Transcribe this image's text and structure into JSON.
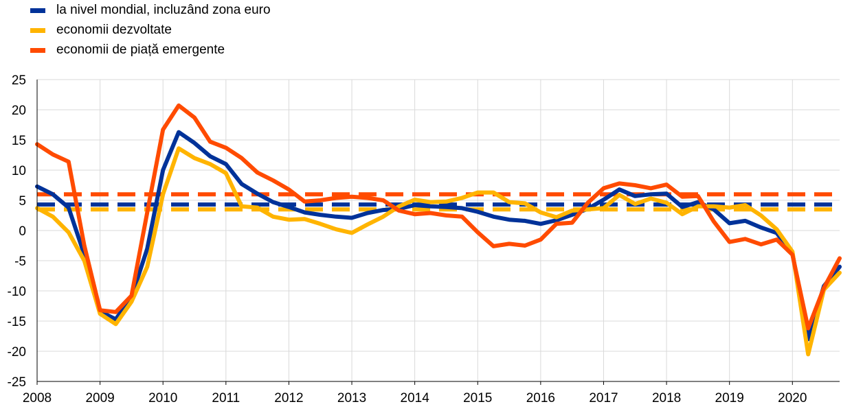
{
  "chart_data": {
    "type": "line",
    "x": [
      "2008Q1",
      "2008Q2",
      "2008Q3",
      "2008Q4",
      "2009Q1",
      "2009Q2",
      "2009Q3",
      "2009Q4",
      "2010Q1",
      "2010Q2",
      "2010Q3",
      "2010Q4",
      "2011Q1",
      "2011Q2",
      "2011Q3",
      "2011Q4",
      "2012Q1",
      "2012Q2",
      "2012Q3",
      "2012Q4",
      "2013Q1",
      "2013Q2",
      "2013Q3",
      "2013Q4",
      "2014Q1",
      "2014Q2",
      "2014Q3",
      "2014Q4",
      "2015Q1",
      "2015Q2",
      "2015Q3",
      "2015Q4",
      "2016Q1",
      "2016Q2",
      "2016Q3",
      "2016Q4",
      "2017Q1",
      "2017Q2",
      "2017Q3",
      "2017Q4",
      "2018Q1",
      "2018Q2",
      "2018Q3",
      "2018Q4",
      "2019Q1",
      "2019Q2",
      "2019Q3",
      "2019Q4",
      "2020Q1",
      "2020Q2",
      "2020Q3",
      "2020Q4"
    ],
    "series": [
      {
        "name": "la nivel mondial, incluzând zona euro",
        "color": "#003299",
        "average": 4.3,
        "values": [
          7.3,
          6.0,
          3.8,
          -4.0,
          -13.4,
          -14.7,
          -11.0,
          -3.0,
          10.0,
          16.3,
          14.5,
          12.3,
          11.0,
          7.7,
          6.1,
          4.7,
          3.9,
          3.0,
          2.6,
          2.3,
          2.1,
          2.9,
          3.4,
          3.6,
          4.2,
          4.0,
          3.9,
          3.7,
          3.1,
          2.3,
          1.8,
          1.6,
          1.1,
          1.7,
          2.6,
          3.6,
          5.1,
          6.8,
          5.7,
          6.0,
          6.1,
          3.9,
          4.7,
          3.5,
          1.2,
          1.6,
          0.5,
          -0.4,
          -3.8,
          -18.0,
          -9.2,
          -6.0
        ]
      },
      {
        "name": "economii dezvoltate",
        "color": "#FFB400",
        "average": 3.5,
        "values": [
          3.7,
          2.3,
          -0.3,
          -5.0,
          -13.8,
          -15.5,
          -11.8,
          -6.0,
          6.0,
          13.6,
          12.0,
          11.0,
          9.5,
          4.0,
          3.8,
          2.3,
          1.8,
          1.9,
          1.1,
          0.2,
          -0.4,
          1.0,
          2.3,
          4.0,
          5.1,
          4.7,
          4.8,
          5.4,
          6.3,
          6.3,
          4.7,
          4.5,
          3.0,
          2.2,
          3.3,
          3.5,
          3.7,
          5.9,
          4.4,
          5.3,
          4.6,
          2.7,
          4.0,
          4.0,
          3.8,
          4.2,
          2.5,
          0.2,
          -3.5,
          -20.5,
          -9.8,
          -7.0
        ]
      },
      {
        "name": "economii de piață emergente",
        "color": "#FF4B00",
        "average": 6.0,
        "values": [
          14.3,
          12.6,
          11.4,
          -2.5,
          -13.2,
          -13.5,
          -10.8,
          3.0,
          16.7,
          20.7,
          18.7,
          14.7,
          13.7,
          12.0,
          9.6,
          8.3,
          6.8,
          4.8,
          5.0,
          5.4,
          5.6,
          5.4,
          5.0,
          3.3,
          2.7,
          2.9,
          2.5,
          2.3,
          -0.3,
          -2.6,
          -2.2,
          -2.5,
          -1.5,
          1.1,
          1.3,
          4.6,
          7.0,
          7.8,
          7.5,
          7.0,
          7.6,
          5.6,
          5.7,
          1.5,
          -1.9,
          -1.4,
          -2.3,
          -1.5,
          -4.0,
          -16.2,
          -9.5,
          -4.6
        ]
      }
    ],
    "ylim": [
      -25,
      25
    ],
    "yticks": [
      "25",
      "20",
      "15",
      "10",
      "5",
      "0",
      "-5",
      "-10",
      "-15",
      "-20",
      "-25"
    ],
    "xticks": [
      "2008",
      "2009",
      "2010",
      "2011",
      "2012",
      "2013",
      "2014",
      "2015",
      "2016",
      "2017",
      "2018",
      "2019",
      "2020"
    ],
    "grid": true,
    "legend_position": "top-left"
  }
}
